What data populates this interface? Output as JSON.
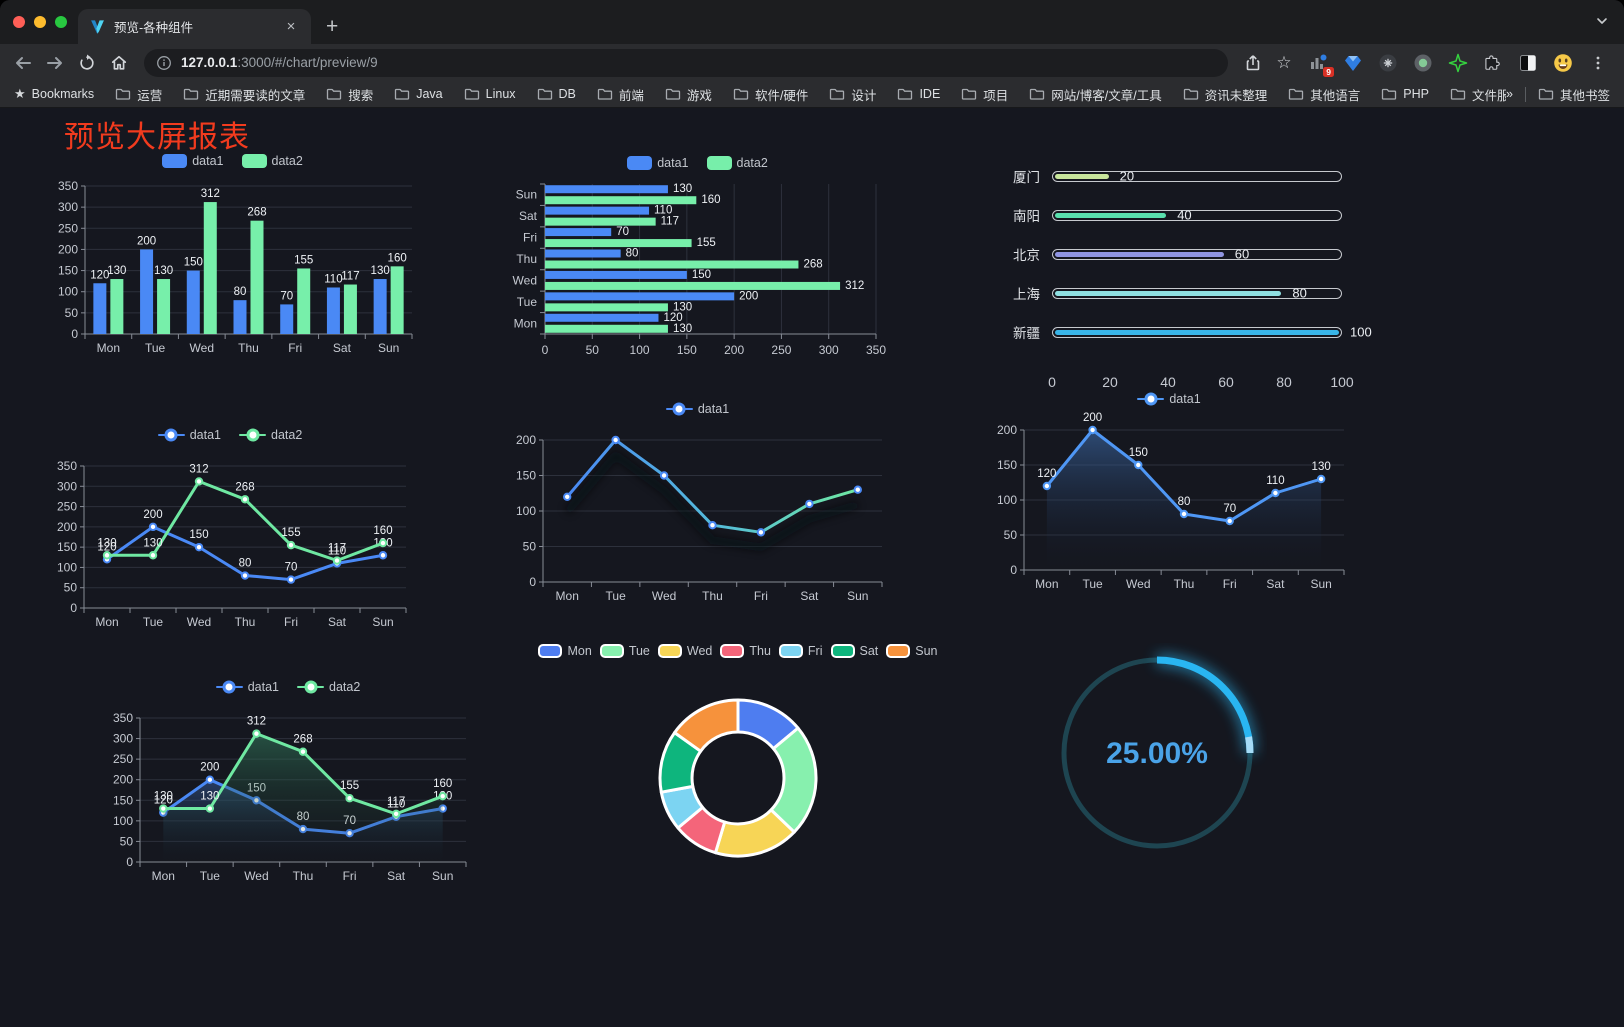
{
  "browser": {
    "window_controls": [
      "close",
      "minimize",
      "zoom"
    ],
    "tab": {
      "title": "预览-各种组件",
      "close_glyph": "×",
      "new_tab_glyph": "+"
    },
    "url": {
      "host": "127.0.0.1",
      "path": ":3000/#/chart/preview/9"
    },
    "toolbar_icons": [
      "back",
      "forward",
      "reload",
      "home",
      "info",
      "share",
      "bookmark-star",
      "extensions",
      "menu"
    ],
    "extensions_badge": "9",
    "bookmarks_bar": {
      "root_label": "Bookmarks",
      "folders": [
        "运营",
        "近期需要读的文章",
        "搜索",
        "Java",
        "Linux",
        "DB",
        "前端",
        "游戏",
        "软件/硬件",
        "设计",
        "IDE",
        "项目",
        "网站/博客/文章/工具",
        "资讯未整理",
        "其他语言",
        "PHP",
        "文件服务器"
      ],
      "overflow_glyph": "»",
      "other_bookmarks_label": "其他书签"
    }
  },
  "page": {
    "title": "预览大屏报表",
    "title_color": "#f23b1e",
    "background": "#15171f"
  },
  "chart_data": [
    {
      "id": "grouped-bar-chart",
      "type": "bar",
      "categories": [
        "Mon",
        "Tue",
        "Wed",
        "Thu",
        "Fri",
        "Sat",
        "Sun"
      ],
      "series": [
        {
          "name": "data1",
          "color": "#4a89f5",
          "values": [
            120,
            200,
            150,
            80,
            70,
            110,
            130
          ]
        },
        {
          "name": "data2",
          "color": "#77efaa",
          "values": [
            130,
            130,
            312,
            268,
            155,
            117,
            160
          ]
        }
      ],
      "ylim": [
        0,
        350
      ],
      "ytick_step": 50,
      "grid": true,
      "legend_position": "top",
      "legend_marker": "rect",
      "value_labels": true
    },
    {
      "id": "horizontal-bar-chart",
      "type": "hbar",
      "categories": [
        "Mon",
        "Tue",
        "Wed",
        "Thu",
        "Fri",
        "Sat",
        "Sun"
      ],
      "display_reversed": true,
      "series": [
        {
          "name": "data1",
          "color": "#4a89f5",
          "values": [
            120,
            200,
            150,
            80,
            70,
            110,
            130
          ]
        },
        {
          "name": "data2",
          "color": "#77efaa",
          "values": [
            130,
            130,
            312,
            268,
            155,
            117,
            160
          ]
        }
      ],
      "xlim": [
        0,
        350
      ],
      "xtick_step": 50,
      "grid": true,
      "legend_position": "top",
      "legend_marker": "rect",
      "value_labels": true
    },
    {
      "id": "progress-bar-chart",
      "type": "progress",
      "max": 100,
      "xticks": [
        0,
        20,
        40,
        60,
        80,
        100
      ],
      "rows": [
        {
          "label": "厦门",
          "value": 20,
          "color": "#c8e69c"
        },
        {
          "label": "南阳",
          "value": 40,
          "color": "#59e0ae"
        },
        {
          "label": "北京",
          "value": 60,
          "color": "#9095e2"
        },
        {
          "label": "上海",
          "value": 80,
          "color": "#8fe0e2"
        },
        {
          "label": "新疆",
          "value": 100,
          "color": "#39b5e8"
        }
      ]
    },
    {
      "id": "multi-line-chart",
      "type": "line",
      "categories": [
        "Mon",
        "Tue",
        "Wed",
        "Thu",
        "Fri",
        "Sat",
        "Sun"
      ],
      "series": [
        {
          "name": "data1",
          "color": "#4a89f5",
          "values": [
            120,
            200,
            150,
            80,
            70,
            110,
            130
          ]
        },
        {
          "name": "data2",
          "color": "#6fe8a2",
          "values": [
            130,
            130,
            312,
            268,
            155,
            117,
            160
          ]
        }
      ],
      "ylim": [
        0,
        350
      ],
      "ytick_step": 50,
      "grid": true,
      "legend_position": "top",
      "legend_marker": "dot",
      "value_labels": true
    },
    {
      "id": "gradient-line-chart",
      "type": "line",
      "shadow": true,
      "categories": [
        "Mon",
        "Tue",
        "Wed",
        "Thu",
        "Fri",
        "Sat",
        "Sun"
      ],
      "series": [
        {
          "name": "data1",
          "color": "#4a89f5",
          "gradient": [
            "#4a89f5",
            "#54bbdb",
            "#6fe8a2"
          ],
          "values": [
            120,
            200,
            150,
            80,
            70,
            110,
            130
          ]
        }
      ],
      "ylim": [
        0,
        200
      ],
      "ytick_step": 50,
      "grid": true,
      "legend_position": "top",
      "legend_marker": "dot",
      "value_labels": false
    },
    {
      "id": "area-line-chart",
      "type": "line",
      "categories": [
        "Mon",
        "Tue",
        "Wed",
        "Thu",
        "Fri",
        "Sat",
        "Sun"
      ],
      "series": [
        {
          "name": "data1",
          "color": "#4f97f5",
          "area": [
            "rgba(62,110,175,0.60)",
            "rgba(20,28,46,0)"
          ],
          "values": [
            120,
            200,
            150,
            80,
            70,
            110,
            130
          ]
        }
      ],
      "ylim": [
        0,
        200
      ],
      "ytick_step": 50,
      "grid": true,
      "legend_position": "top",
      "legend_marker": "dot",
      "value_labels": true
    },
    {
      "id": "two-series-area-chart",
      "type": "line",
      "categories": [
        "Mon",
        "Tue",
        "Wed",
        "Thu",
        "Fri",
        "Sat",
        "Sun"
      ],
      "series": [
        {
          "name": "data1",
          "color": "#4a89f5",
          "area": [
            "rgba(58,100,170,0.50)",
            "rgba(20,30,50,0)"
          ],
          "values": [
            120,
            200,
            150,
            80,
            70,
            110,
            130
          ]
        },
        {
          "name": "data2",
          "color": "#6fe8a2",
          "area": [
            "rgba(52,128,96,0.55)",
            "rgba(20,40,32,0)"
          ],
          "values": [
            130,
            130,
            312,
            268,
            155,
            117,
            160
          ]
        }
      ],
      "ylim": [
        0,
        350
      ],
      "ytick_step": 50,
      "grid": true,
      "legend_position": "top",
      "legend_marker": "dot",
      "value_labels": true
    },
    {
      "id": "donut-chart",
      "type": "pie",
      "legend_position": "top",
      "legend_marker": "pie",
      "labels": [
        "Mon",
        "Tue",
        "Wed",
        "Thu",
        "Fri",
        "Sat",
        "Sun"
      ],
      "values": [
        120,
        200,
        150,
        80,
        70,
        110,
        130
      ],
      "colors": [
        "#4e7df0",
        "#87f0ae",
        "#f7d556",
        "#f4657a",
        "#7cd4f2",
        "#0eb57d",
        "#f6923c"
      ]
    },
    {
      "id": "gauge-chart",
      "type": "gauge",
      "percent": 25,
      "label": "25.00%",
      "color": "#29b6f2",
      "tip_color": "#a5dcf8",
      "track_color": "#1e4551",
      "text_color": "#4aa3e8"
    }
  ]
}
